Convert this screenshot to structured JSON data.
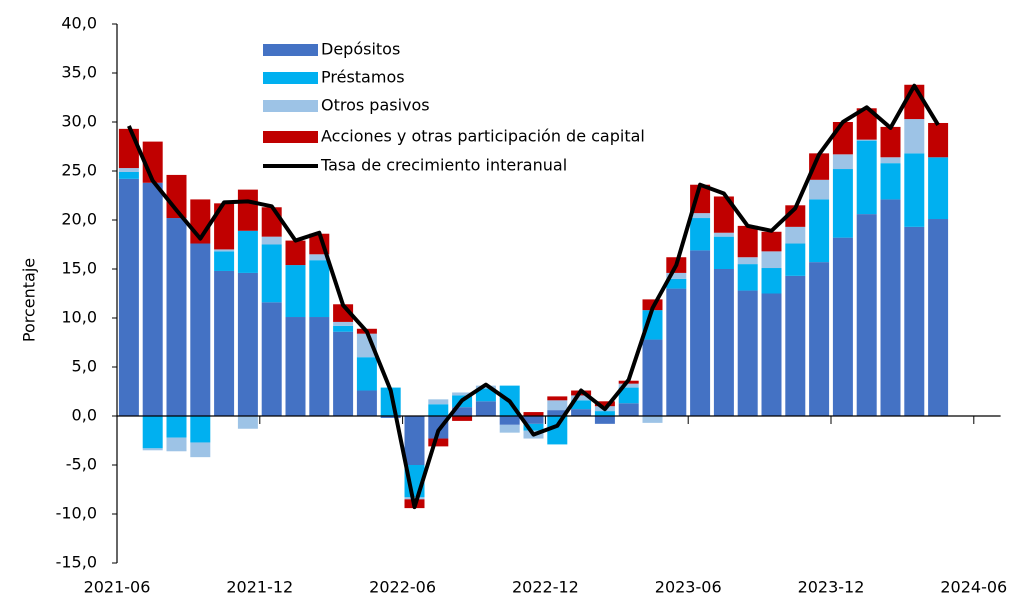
{
  "chart_data": {
    "type": "bar",
    "stacked": true,
    "y_label": "Porcentaje",
    "categories": [
      "2021-06",
      null,
      null,
      null,
      null,
      null,
      "2021-12",
      null,
      null,
      null,
      null,
      null,
      "2022-06",
      null,
      null,
      null,
      null,
      null,
      "2022-12",
      null,
      null,
      null,
      null,
      null,
      "2023-06",
      null,
      null,
      null,
      null,
      null,
      "2023-12",
      null,
      null,
      null,
      null,
      null,
      "2024-06"
    ],
    "ylim": [
      -15,
      40
    ],
    "yticks": [
      {
        "value": -15,
        "label": "-15,0"
      },
      {
        "value": -10,
        "label": "-10,0"
      },
      {
        "value": -5,
        "label": "-5,0"
      },
      {
        "value": 0,
        "label": "0,0"
      },
      {
        "value": 5,
        "label": "5,0"
      },
      {
        "value": 10,
        "label": "10,0"
      },
      {
        "value": 15,
        "label": "15,0"
      },
      {
        "value": 20,
        "label": "20,0"
      },
      {
        "value": 25,
        "label": "25,0"
      },
      {
        "value": 30,
        "label": "30,0"
      },
      {
        "value": 35,
        "label": "35,0"
      },
      {
        "value": 40,
        "label": "40,0"
      }
    ],
    "legend": "upper left",
    "series": [
      {
        "name": "Depósitos",
        "type": "bar",
        "color": "#4472c4",
        "values": [
          24.2,
          23.8,
          20.2,
          17.6,
          14.8,
          14.6,
          11.6,
          10.1,
          10.1,
          8.6,
          2.6,
          -0.2,
          -5.0,
          -2.3,
          0.9,
          1.5,
          -0.9,
          -0.8,
          0.6,
          0.7,
          -0.8,
          1.3,
          7.8,
          13.0,
          16.9,
          15.0,
          12.8,
          12.5,
          14.3,
          15.7,
          18.2,
          20.6,
          22.1,
          19.3,
          20.1,
          null,
          null
        ]
      },
      {
        "name": "Préstamos",
        "type": "bar",
        "color": "#00b0f0",
        "values": [
          0.7,
          -3.3,
          -2.2,
          -2.7,
          2.0,
          4.3,
          5.9,
          5.3,
          5.8,
          0.6,
          3.4,
          2.9,
          -3.3,
          1.2,
          1.2,
          1.3,
          3.1,
          -0.7,
          -2.9,
          0.9,
          0.5,
          1.6,
          3.0,
          1.0,
          3.3,
          3.3,
          2.7,
          2.6,
          3.3,
          6.4,
          7.0,
          7.5,
          3.7,
          7.5,
          6.3,
          null,
          null
        ]
      },
      {
        "name": "Otros pasivos",
        "type": "bar",
        "color": "#9dc3e6",
        "values": [
          0.4,
          -0.2,
          -1.4,
          -1.5,
          0.2,
          -1.3,
          0.8,
          0,
          0.6,
          0.4,
          2.4,
          0,
          -0.2,
          0.5,
          0.3,
          0.3,
          -0.8,
          -0.8,
          1.0,
          0.5,
          0.5,
          0.4,
          -0.7,
          0.6,
          0.5,
          0.4,
          0.7,
          1.7,
          1.7,
          2.0,
          1.5,
          0.1,
          0.6,
          3.5,
          0,
          null,
          null
        ]
      },
      {
        "name": "Acciones y otras participación de capital",
        "type": "bar",
        "color": "#c00000",
        "values": [
          4.0,
          4.2,
          4.4,
          4.5,
          4.7,
          4.2,
          3.0,
          2.5,
          2.1,
          1.8,
          0.5,
          0,
          -0.9,
          -0.8,
          -0.5,
          0,
          0,
          0.4,
          0.4,
          0.5,
          0.5,
          0.3,
          1.1,
          1.6,
          2.9,
          3.7,
          3.2,
          2.0,
          2.2,
          2.7,
          3.3,
          3.2,
          3.1,
          3.5,
          3.5,
          null,
          null
        ]
      },
      {
        "name": "Tasa de crecimiento interanual",
        "type": "line",
        "color": "#000000",
        "values": [
          29.6,
          24.0,
          21.0,
          18.1,
          21.8,
          21.9,
          21.4,
          17.9,
          18.7,
          11.3,
          8.6,
          2.6,
          -9.3,
          -1.5,
          1.6,
          3.2,
          1.5,
          -1.9,
          -1.0,
          2.6,
          0.7,
          3.7,
          11.0,
          15.4,
          23.6,
          22.7,
          19.4,
          18.9,
          21.2,
          26.7,
          30.0,
          31.5,
          29.4,
          33.7,
          29.7,
          null,
          null
        ]
      }
    ]
  }
}
